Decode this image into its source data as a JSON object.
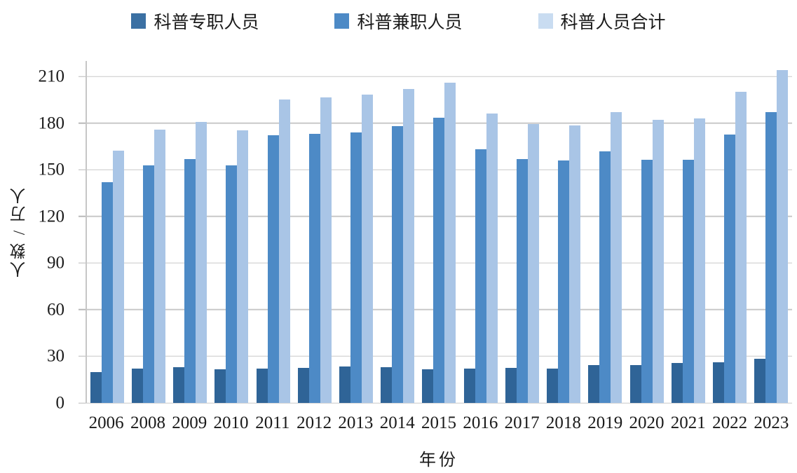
{
  "chart_data": {
    "type": "bar",
    "title": "",
    "xlabel": "年份",
    "ylabel": "人数 / 万人",
    "x": [
      "2006",
      "2008",
      "2009",
      "2010",
      "2011",
      "2012",
      "2013",
      "2014",
      "2015",
      "2016",
      "2017",
      "2018",
      "2019",
      "2020",
      "2021",
      "2022",
      "2023"
    ],
    "ylim": [
      0,
      220
    ],
    "y_ticks": [
      0,
      30,
      60,
      90,
      120,
      150,
      180,
      210
    ],
    "grid": true,
    "legend_position": "top",
    "series": [
      {
        "name": "科普专职人员",
        "color": "#2f6497",
        "legend_color": "#3b70a3",
        "values": [
          20,
          22,
          23,
          21.5,
          22,
          22.5,
          23.5,
          23,
          21.5,
          22,
          22.5,
          22,
          24.5,
          24.5,
          25.5,
          26,
          28.5
        ]
      },
      {
        "name": "科普兼职人员",
        "color": "#4d8ac6",
        "legend_color": "#4d8ac6",
        "values": [
          142,
          153,
          157,
          153,
          172,
          173,
          174,
          178,
          183.5,
          163,
          157,
          156,
          162,
          156.5,
          156.5,
          172.5,
          187
        ]
      },
      {
        "name": "科普人员合计",
        "color": "#a9c5e6",
        "legend_color": "#c9dcf1",
        "values": [
          162.5,
          176,
          181,
          175.5,
          195,
          196.5,
          198.5,
          202,
          206,
          186,
          179.5,
          178.5,
          187,
          182,
          183,
          200,
          214
        ]
      }
    ],
    "colors": {
      "gridline": "#c9c9c9",
      "axis_line": "#c7c7c7",
      "text": "#1a1a1a"
    }
  }
}
